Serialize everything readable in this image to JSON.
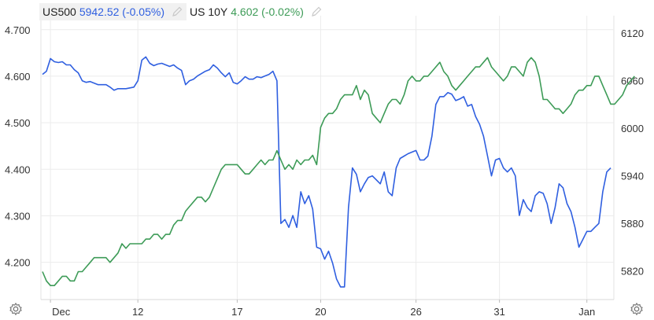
{
  "legend": [
    {
      "name": "US500",
      "value": "5942.52 (-0.05%)",
      "color": "#2f5fe0",
      "icon": "pencil-icon"
    },
    {
      "name": "US 10Y",
      "value": "4.602 (-0.02%)",
      "color": "#3d9b57",
      "icon": "pencil-icon"
    }
  ],
  "icons": {
    "left_gear": "gear-icon",
    "right_gear": "gear-icon"
  },
  "chart_data": {
    "type": "line",
    "x_ticks": [
      "Dec",
      "12",
      "17",
      "20",
      "26",
      "31",
      "Jan"
    ],
    "left_axis": {
      "ticks": [
        "4.700",
        "4.600",
        "4.500",
        "4.400",
        "4.300",
        "4.200"
      ],
      "range": [
        4.12,
        4.73
      ]
    },
    "right_axis": {
      "ticks": [
        "6120",
        "6060",
        "6000",
        "5940",
        "5880",
        "5820"
      ],
      "range": [
        5784,
        6142
      ]
    },
    "grid": true,
    "series": [
      {
        "name": "US500",
        "axis": "right",
        "color": "#2f5fe0",
        "values": [
          6068,
          6072,
          6088,
          6084,
          6083,
          6084,
          6080,
          6080,
          6074,
          6070,
          6060,
          6058,
          6059,
          6057,
          6055,
          6055,
          6055,
          6052,
          6048,
          6050,
          6050,
          6050,
          6051,
          6052,
          6060,
          6086,
          6090,
          6082,
          6079,
          6081,
          6082,
          6080,
          6078,
          6080,
          6076,
          6073,
          6055,
          6060,
          6062,
          6066,
          6069,
          6072,
          6074,
          6080,
          6076,
          6070,
          6065,
          6070,
          6058,
          6056,
          6060,
          6065,
          6062,
          6062,
          6065,
          6064,
          6066,
          6068,
          6072,
          6060,
          5880,
          5885,
          5875,
          5890,
          5875,
          5920,
          5905,
          5915,
          5898,
          5850,
          5848,
          5835,
          5845,
          5830,
          5810,
          5800,
          5800,
          5900,
          5950,
          5942,
          5920,
          5930,
          5938,
          5940,
          5935,
          5930,
          5945,
          5920,
          5915,
          5950,
          5962,
          5965,
          5968,
          5970,
          5972,
          5960,
          5960,
          5965,
          5990,
          6030,
          6040,
          6040,
          6045,
          6043,
          6035,
          6037,
          6040,
          6028,
          6030,
          6015,
          6005,
          5990,
          5965,
          5940,
          5960,
          5962,
          5950,
          5945,
          5950,
          5940,
          5890,
          5910,
          5900,
          5895,
          5915,
          5920,
          5918,
          5905,
          5880,
          5900,
          5930,
          5925,
          5905,
          5895,
          5875,
          5850,
          5860,
          5870,
          5870,
          5875,
          5880,
          5920,
          5945,
          5950
        ]
      },
      {
        "name": "US 10Y",
        "axis": "left",
        "color": "#3d9b57",
        "values": [
          4.18,
          4.16,
          4.15,
          4.15,
          4.16,
          4.17,
          4.17,
          4.16,
          4.16,
          4.18,
          4.18,
          4.19,
          4.2,
          4.21,
          4.21,
          4.21,
          4.21,
          4.2,
          4.21,
          4.22,
          4.24,
          4.23,
          4.24,
          4.24,
          4.24,
          4.24,
          4.25,
          4.25,
          4.26,
          4.26,
          4.25,
          4.26,
          4.26,
          4.28,
          4.29,
          4.29,
          4.31,
          4.32,
          4.33,
          4.34,
          4.34,
          4.33,
          4.34,
          4.36,
          4.38,
          4.4,
          4.41,
          4.41,
          4.41,
          4.41,
          4.4,
          4.39,
          4.39,
          4.4,
          4.41,
          4.42,
          4.41,
          4.42,
          4.42,
          4.44,
          4.42,
          4.4,
          4.41,
          4.4,
          4.42,
          4.41,
          4.42,
          4.42,
          4.43,
          4.41,
          4.49,
          4.51,
          4.52,
          4.52,
          4.53,
          4.55,
          4.56,
          4.56,
          4.56,
          4.58,
          4.55,
          4.57,
          4.56,
          4.52,
          4.51,
          4.5,
          4.52,
          4.54,
          4.55,
          4.55,
          4.54,
          4.56,
          4.59,
          4.6,
          4.59,
          4.59,
          4.6,
          4.6,
          4.61,
          4.62,
          4.63,
          4.61,
          4.6,
          4.58,
          4.57,
          4.58,
          4.59,
          4.6,
          4.61,
          4.62,
          4.62,
          4.63,
          4.64,
          4.62,
          4.61,
          4.6,
          4.59,
          4.6,
          4.62,
          4.62,
          4.61,
          4.6,
          4.63,
          4.64,
          4.63,
          4.6,
          4.55,
          4.55,
          4.54,
          4.53,
          4.53,
          4.52,
          4.53,
          4.54,
          4.56,
          4.57,
          4.57,
          4.58,
          4.58,
          4.6,
          4.6,
          4.58,
          4.56,
          4.54,
          4.54,
          4.55,
          4.56,
          4.58,
          4.59,
          4.6
        ]
      }
    ]
  }
}
